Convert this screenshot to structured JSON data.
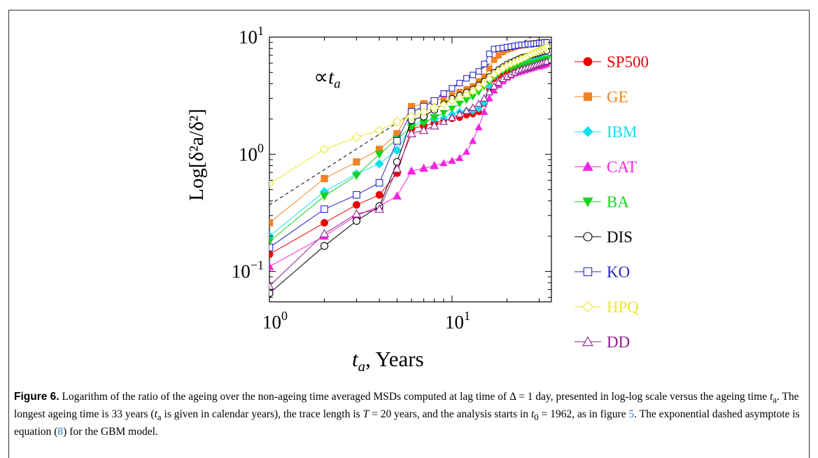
{
  "chart_data": {
    "type": "scatter",
    "xscale": "log",
    "yscale": "log",
    "xlim": [
      1,
      35
    ],
    "ylim": [
      0.055,
      10
    ],
    "grid": false,
    "legend_position": "right",
    "xlabel_var": "t",
    "xlabel_sub": "a",
    "xlabel_rest": ", Years",
    "ylabel": "Log[δ²a/δ²]",
    "x_ticks": [
      {
        "value": 1,
        "base": "10",
        "exp": "0"
      },
      {
        "value": 10,
        "base": "10",
        "exp": "1"
      }
    ],
    "y_ticks": [
      {
        "value": 0.1,
        "base": "10",
        "exp": "−1"
      },
      {
        "value": 1,
        "base": "10",
        "exp": "0"
      },
      {
        "value": 10,
        "base": "10",
        "exp": "1"
      }
    ],
    "annotation": {
      "prefix": "∝",
      "var": "t",
      "sub": "a",
      "x": 1.75,
      "y": 4.0
    },
    "asymptote": {
      "label": "GBM asymptote",
      "x": [
        1,
        33
      ],
      "y": [
        0.37,
        12.2
      ]
    },
    "x": [
      1,
      2,
      3,
      4,
      5,
      6,
      7,
      8,
      9,
      10,
      11,
      12,
      13,
      14,
      15,
      16,
      17,
      18,
      19,
      20,
      21,
      22,
      23,
      24,
      25,
      26,
      27,
      28,
      29,
      30,
      31,
      32,
      33
    ],
    "series": [
      {
        "name": "SP500",
        "color": "#ee0000",
        "marker": "circle",
        "filled": true,
        "values": [
          0.14,
          0.26,
          0.37,
          0.45,
          0.69,
          1.65,
          1.75,
          1.85,
          1.95,
          2.0,
          2.05,
          2.15,
          2.2,
          2.3,
          2.7,
          3.6,
          4.4,
          4.7,
          5.0,
          5.2,
          5.4,
          5.5,
          5.5,
          5.6,
          5.6,
          5.7,
          5.7,
          5.7,
          5.8,
          5.8,
          5.8,
          5.9,
          5.9
        ]
      },
      {
        "name": "GE",
        "color": "#f28222",
        "marker": "square",
        "filled": true,
        "values": [
          0.26,
          0.62,
          0.86,
          1.1,
          1.5,
          2.55,
          2.7,
          2.85,
          3.0,
          3.2,
          3.4,
          3.6,
          3.8,
          4.2,
          4.6,
          5.4,
          6.4,
          7.0,
          7.5,
          7.8,
          8.0,
          8.2,
          8.4,
          8.5,
          8.6,
          8.7,
          8.8,
          8.9,
          8.9,
          9.0,
          9.0,
          9.1,
          9.1
        ]
      },
      {
        "name": "IBM",
        "color": "#11dfea",
        "marker": "diamond",
        "filled": true,
        "values": [
          0.2,
          0.48,
          0.68,
          0.83,
          1.08,
          1.8,
          1.9,
          2.0,
          2.05,
          2.2,
          2.3,
          2.35,
          2.35,
          2.45,
          2.75,
          3.8,
          4.6,
          5.1,
          5.5,
          5.7,
          5.9,
          6.0,
          6.1,
          6.2,
          6.2,
          6.3,
          6.3,
          6.4,
          6.4,
          6.5,
          6.5,
          6.5,
          6.6
        ]
      },
      {
        "name": "CAT",
        "color": "#f423e2",
        "marker": "triangle-up",
        "filled": true,
        "values": [
          0.11,
          0.2,
          0.3,
          0.36,
          0.44,
          0.72,
          0.76,
          0.8,
          0.84,
          0.88,
          0.93,
          1.05,
          1.3,
          1.7,
          2.3,
          3.0,
          3.5,
          3.9,
          4.2,
          4.5,
          4.7,
          4.9,
          5.0,
          5.1,
          5.2,
          5.3,
          5.4,
          5.5,
          5.6,
          5.6,
          5.7,
          5.8,
          5.9
        ]
      },
      {
        "name": "BA",
        "color": "#16d41c",
        "marker": "triangle-down",
        "filled": true,
        "values": [
          0.18,
          0.44,
          0.66,
          1.0,
          1.35,
          1.7,
          1.85,
          2.05,
          2.25,
          2.45,
          2.7,
          2.9,
          3.1,
          3.4,
          3.8,
          4.2,
          4.6,
          4.9,
          5.1,
          5.3,
          5.4,
          5.5,
          5.6,
          5.7,
          5.8,
          5.9,
          6.0,
          6.0,
          6.1,
          6.2,
          6.3,
          6.4,
          6.5
        ]
      },
      {
        "name": "DIS",
        "color": "#000000",
        "marker": "circle",
        "filled": false,
        "values": [
          0.065,
          0.165,
          0.27,
          0.36,
          0.86,
          1.95,
          2.1,
          2.4,
          2.7,
          3.0,
          3.2,
          3.4,
          3.6,
          3.9,
          4.2,
          4.6,
          5.0,
          5.3,
          5.6,
          5.9,
          6.1,
          6.3,
          6.5,
          6.7,
          6.8,
          6.9,
          7.0,
          7.1,
          7.2,
          7.3,
          7.4,
          7.5,
          7.6
        ]
      },
      {
        "name": "KO",
        "color": "#2525cc",
        "marker": "square",
        "filled": false,
        "values": [
          0.16,
          0.34,
          0.45,
          0.57,
          1.3,
          2.3,
          2.55,
          2.85,
          3.3,
          3.65,
          4.05,
          4.45,
          4.75,
          5.1,
          5.9,
          7.2,
          7.9,
          8.0,
          8.1,
          8.2,
          8.3,
          8.4,
          8.5,
          8.6,
          8.6,
          8.7,
          8.7,
          8.8,
          8.8,
          8.9,
          8.9,
          9.0,
          9.0
        ]
      },
      {
        "name": "HPQ",
        "color": "#e8e82a",
        "marker": "diamond",
        "filled": false,
        "values": [
          0.56,
          1.1,
          1.4,
          1.6,
          1.9,
          2.1,
          2.3,
          2.5,
          2.65,
          2.85,
          3.05,
          3.25,
          3.45,
          3.7,
          4.0,
          4.4,
          4.8,
          5.1,
          5.4,
          5.7,
          5.9,
          6.1,
          6.3,
          6.5,
          6.7,
          6.9,
          7.1,
          7.3,
          7.5,
          7.7,
          7.9,
          8.1,
          8.3
        ]
      },
      {
        "name": "DD",
        "color": "#8d1d8d",
        "marker": "triangle-up",
        "filled": false,
        "values": [
          0.075,
          0.21,
          0.31,
          0.34,
          0.75,
          1.5,
          1.6,
          1.75,
          1.9,
          2.05,
          2.2,
          2.35,
          2.5,
          2.7,
          3.0,
          3.4,
          3.8,
          4.1,
          4.4,
          4.6,
          4.8,
          5.0,
          5.2,
          5.3,
          5.4,
          5.5,
          5.6,
          5.7,
          5.8,
          5.9,
          6.0,
          6.1,
          6.2
        ]
      }
    ]
  },
  "caption": {
    "figure_label": "Figure 6.",
    "part1": " Logarithm of the ratio of the ageing over the non-ageing time averaged MSDs computed at lag time of Δ = 1 day, presented in log-log scale versus the ageing time ",
    "ta_var": "t",
    "ta_sub": "a",
    "part2": ". The longest ageing time is 33 years (",
    "part3": " is given in calendar years), the trace length is ",
    "T_var": "T",
    "part4": " = 20 years, and the analysis starts in ",
    "t0_var": "t",
    "t0_sub": "0",
    "part5": " = 1962, as in figure ",
    "fig_ref": "5",
    "part6": ". The exponential dashed asymptote is equation (",
    "eq_ref": "8",
    "part7": ") for the GBM model."
  }
}
